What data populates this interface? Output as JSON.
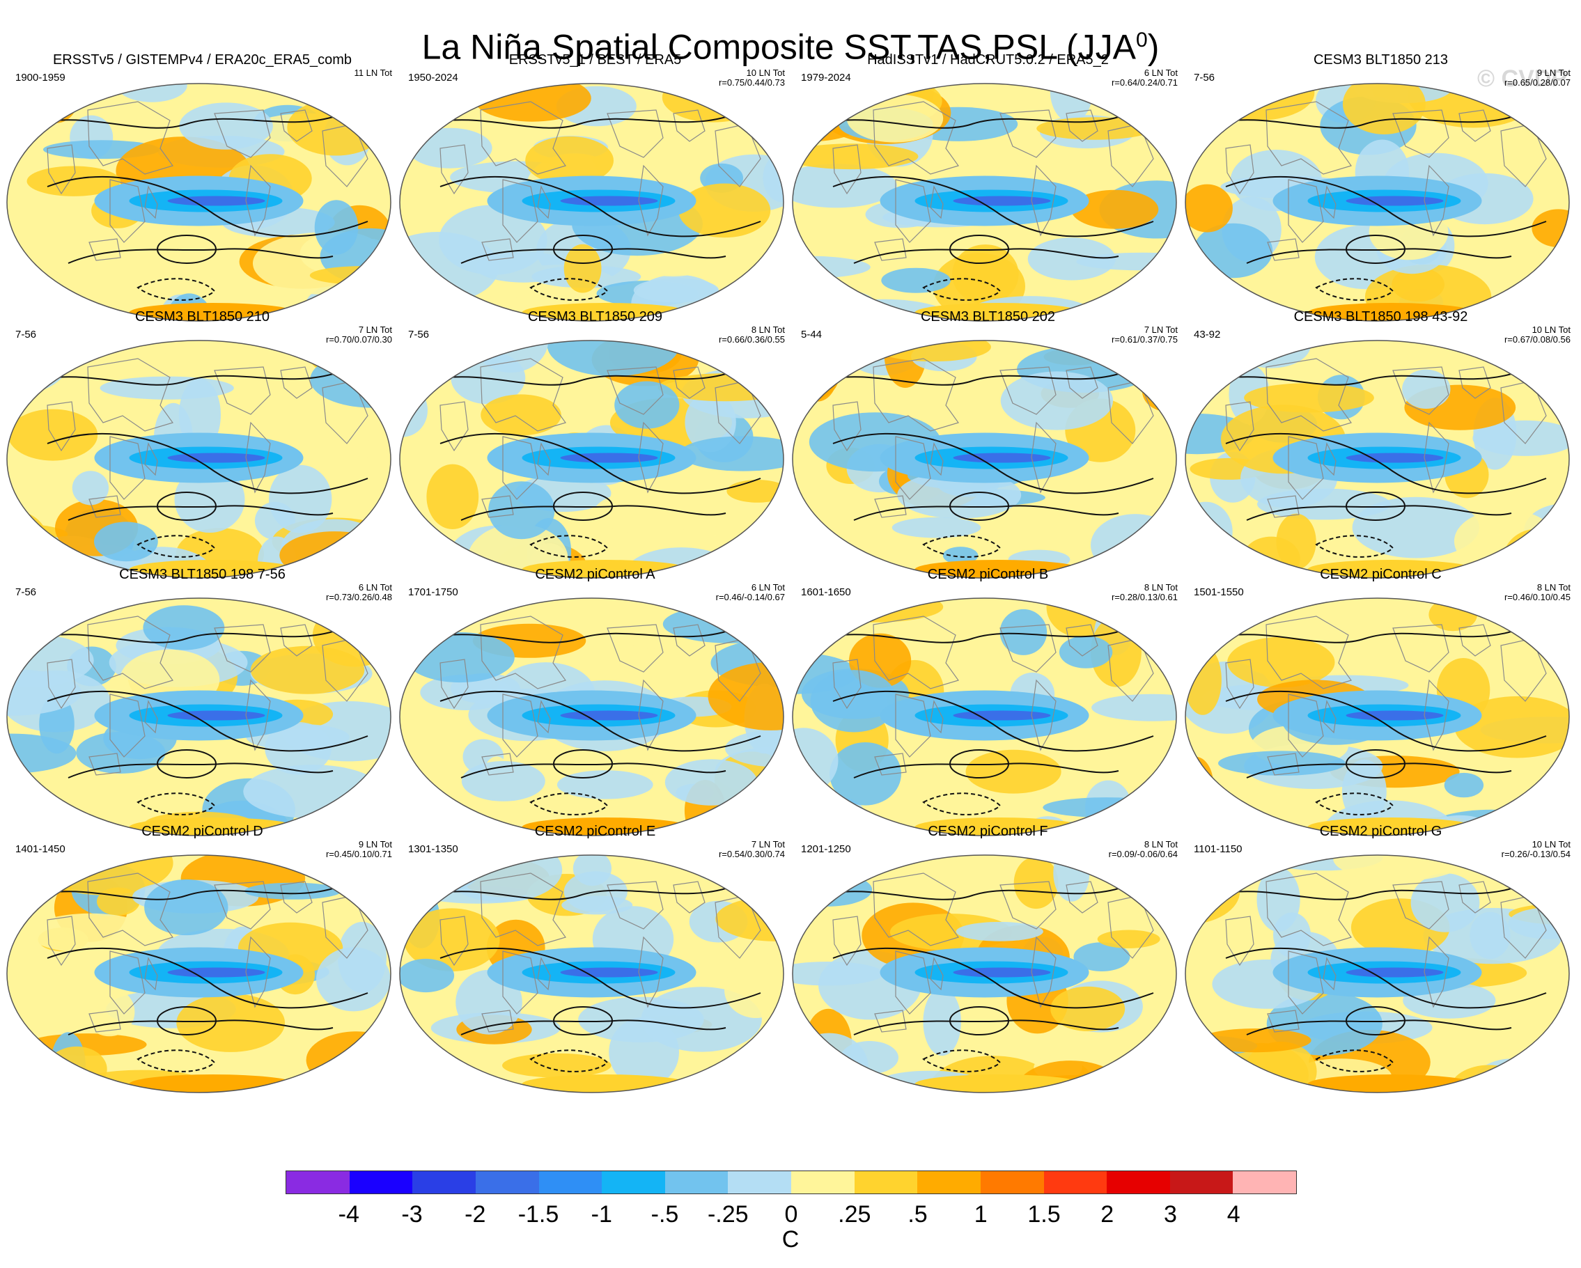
{
  "title_main": "La Niña Spatial Composite SST,TAS,PSL (JJA",
  "title_sup": "0",
  "title_close": ")",
  "watermark": "© CVDP",
  "panels": [
    {
      "title": "ERSSTv5 / GISTEMPv4 / ERA20c_ERA5_comb",
      "years": "1900-1959",
      "count": "11 LN Tot",
      "corr": ""
    },
    {
      "title": "ERSSTv5_1 / BEST / ERA5",
      "years": "1950-2024",
      "count": "10 LN Tot",
      "corr": "r=0.75/0.44/0.73"
    },
    {
      "title": "HadISSTv1 / HadCRUT5.0.2 / ERA5_2",
      "years": "1979-2024",
      "count": "6 LN Tot",
      "corr": "r=0.64/0.24/0.71"
    },
    {
      "title": "CESM3 BLT1850 213",
      "years": "7-56",
      "count": "9 LN Tot",
      "corr": "r=0.65/0.28/0.07"
    },
    {
      "title": "CESM3 BLT1850 210",
      "years": "7-56",
      "count": "7 LN Tot",
      "corr": "r=0.70/0.07/0.30"
    },
    {
      "title": "CESM3 BLT1850 209",
      "years": "7-56",
      "count": "8 LN Tot",
      "corr": "r=0.66/0.36/0.55"
    },
    {
      "title": "CESM3 BLT1850 202",
      "years": "5-44",
      "count": "7 LN Tot",
      "corr": "r=0.61/0.37/0.75"
    },
    {
      "title": "CESM3 BLT1850 198 43-92",
      "years": "43-92",
      "count": "10 LN Tot",
      "corr": "r=0.67/0.08/0.56"
    },
    {
      "title": "CESM3 BLT1850 198 7-56",
      "years": "7-56",
      "count": "6 LN Tot",
      "corr": "r=0.73/0.26/0.48"
    },
    {
      "title": "CESM2 piControl A",
      "years": "1701-1750",
      "count": "6 LN Tot",
      "corr": "r=0.46/-0.14/0.67"
    },
    {
      "title": "CESM2 piControl B",
      "years": "1601-1650",
      "count": "8 LN Tot",
      "corr": "r=0.28/0.13/0.61"
    },
    {
      "title": "CESM2 piControl C",
      "years": "1501-1550",
      "count": "8 LN Tot",
      "corr": "r=0.46/0.10/0.45"
    },
    {
      "title": "CESM2 piControl D",
      "years": "1401-1450",
      "count": "9 LN Tot",
      "corr": "r=0.45/0.10/0.71"
    },
    {
      "title": "CESM2 piControl E",
      "years": "1301-1350",
      "count": "7 LN Tot",
      "corr": "r=0.54/0.30/0.74"
    },
    {
      "title": "CESM2 piControl F",
      "years": "1201-1250",
      "count": "8 LN Tot",
      "corr": "r=0.09/-0.06/0.64"
    },
    {
      "title": "CESM2 piControl G",
      "years": "1101-1150",
      "count": "10 LN Tot",
      "corr": "r=0.26/-0.13/0.54"
    }
  ],
  "colorbar": {
    "colors": [
      "#8a2be2",
      "#1a00ff",
      "#2a3fe6",
      "#3a6fe8",
      "#2f8ff5",
      "#14b4f5",
      "#72c3ee",
      "#b4def4",
      "#fff59a",
      "#ffd32e",
      "#ffab00",
      "#ff7a00",
      "#ff3a10",
      "#e60000",
      "#c81818",
      "#ffb4b4"
    ],
    "ticks": [
      "-4",
      "-3",
      "-2",
      "-1.5",
      "-1",
      "-.5",
      "-.25",
      "0",
      ".25",
      ".5",
      "1",
      "1.5",
      "2",
      "3",
      "4"
    ],
    "unit": "C"
  }
}
